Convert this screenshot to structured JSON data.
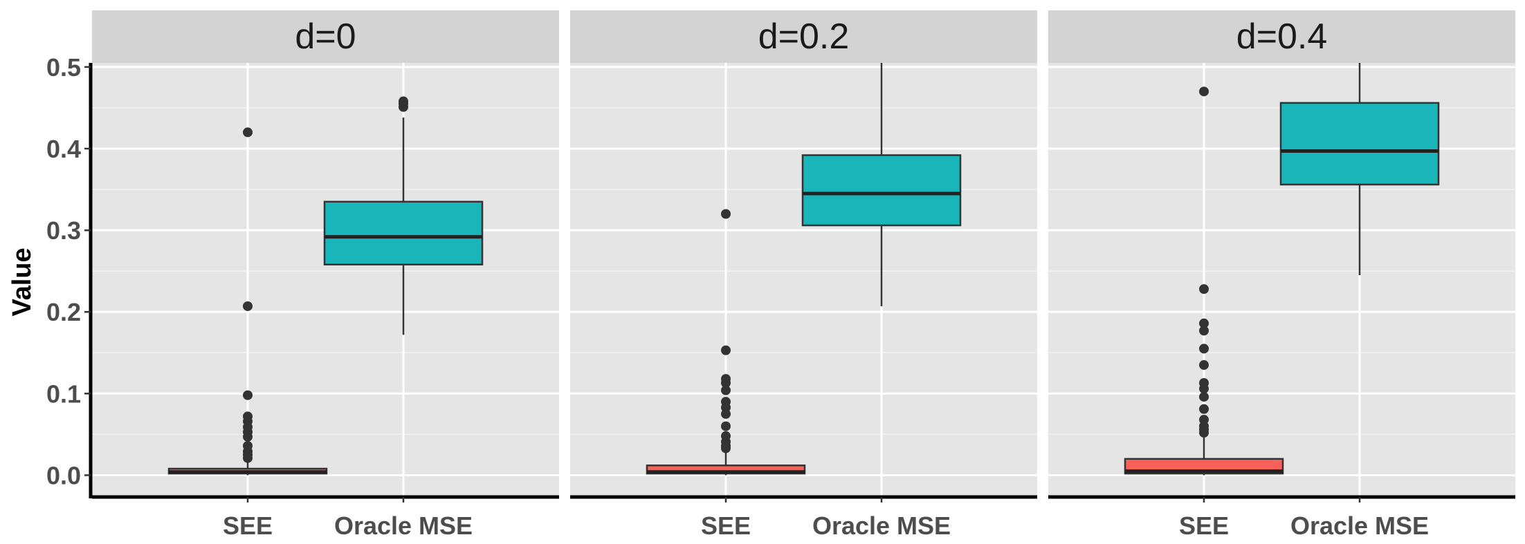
{
  "chart_data": {
    "type": "boxplot",
    "ylabel": "Value",
    "xlabel": "",
    "ylim": [
      -0.025,
      0.505
    ],
    "y_ticks": [
      0.0,
      0.1,
      0.2,
      0.3,
      0.4,
      0.5
    ],
    "y_tick_labels": [
      "0.0",
      "0.1",
      "0.2",
      "0.3",
      "0.4",
      "0.5"
    ],
    "categories": [
      "SEE",
      "Oracle MSE"
    ],
    "colors": {
      "SEE": "#F8605A",
      "Oracle MSE": "#19B5B8"
    },
    "panel_background": "#E5E5E5",
    "strip_background": "#D3D3D3",
    "panels": [
      {
        "label": "d=0",
        "boxes": [
          {
            "category": "SEE",
            "q1": 0.002,
            "median": 0.004,
            "q3": 0.008,
            "whisker_low": 0.0,
            "whisker_high": 0.017,
            "outliers": [
              0.021,
              0.025,
              0.029,
              0.036,
              0.047,
              0.053,
              0.059,
              0.066,
              0.072,
              0.098,
              0.207,
              0.42
            ]
          },
          {
            "category": "Oracle MSE",
            "q1": 0.258,
            "median": 0.292,
            "q3": 0.335,
            "whisker_low": 0.172,
            "whisker_high": 0.438,
            "outliers": [
              0.451,
              0.455,
              0.458
            ]
          }
        ]
      },
      {
        "label": "d=0.2",
        "boxes": [
          {
            "category": "SEE",
            "q1": 0.002,
            "median": 0.004,
            "q3": 0.012,
            "whisker_low": 0.0,
            "whisker_high": 0.028,
            "outliers": [
              0.033,
              0.036,
              0.041,
              0.048,
              0.06,
              0.075,
              0.083,
              0.09,
              0.104,
              0.113,
              0.118,
              0.153,
              0.32
            ]
          },
          {
            "category": "Oracle MSE",
            "q1": 0.306,
            "median": 0.345,
            "q3": 0.392,
            "whisker_low": 0.207,
            "whisker_high": 0.505,
            "outliers": []
          }
        ]
      },
      {
        "label": "d=0.4",
        "boxes": [
          {
            "category": "SEE",
            "q1": 0.002,
            "median": 0.005,
            "q3": 0.02,
            "whisker_low": 0.0,
            "whisker_high": 0.047,
            "outliers": [
              0.052,
              0.056,
              0.06,
              0.068,
              0.081,
              0.096,
              0.106,
              0.113,
              0.135,
              0.155,
              0.177,
              0.186,
              0.228,
              0.47
            ]
          },
          {
            "category": "Oracle MSE",
            "q1": 0.356,
            "median": 0.397,
            "q3": 0.456,
            "whisker_low": 0.245,
            "whisker_high": 0.505,
            "outliers": []
          }
        ]
      }
    ]
  }
}
